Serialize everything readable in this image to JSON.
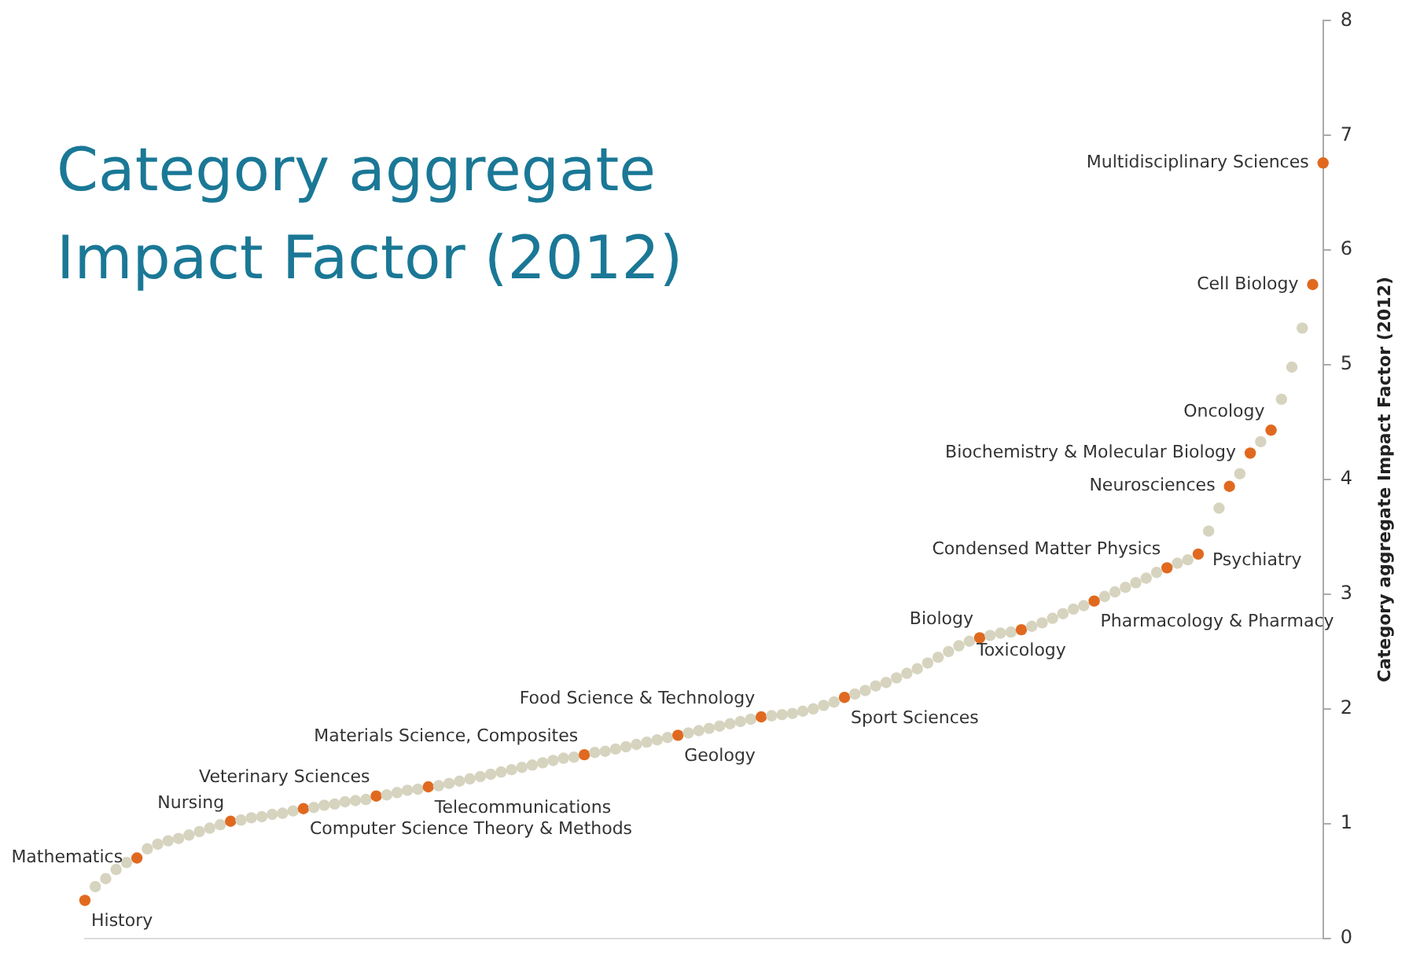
{
  "chart_data": {
    "type": "scatter",
    "title": "Category aggregate Impact Factor (2012)",
    "ylabel": "Category aggregate Impact Factor (2012)",
    "categories": [
      null,
      null,
      null,
      null,
      null,
      null,
      null,
      null,
      null,
      null,
      null,
      null,
      null,
      null,
      null,
      null,
      null,
      null,
      null,
      null,
      null,
      null,
      null,
      null,
      null,
      null,
      null,
      null,
      null,
      null,
      null,
      null,
      null,
      null,
      null,
      null,
      null,
      null,
      null,
      null,
      null,
      null,
      null,
      null,
      null,
      null,
      null,
      null,
      null,
      null,
      null,
      null,
      null,
      null,
      null,
      null,
      null,
      null,
      null,
      null,
      null,
      null,
      null,
      null,
      null,
      null,
      null,
      null,
      null,
      null,
      null,
      null,
      null,
      null,
      null,
      null,
      null,
      null,
      null,
      null,
      null,
      null,
      null,
      null,
      null,
      null,
      null,
      null,
      null,
      null,
      null,
      null,
      null,
      null,
      null,
      null,
      null,
      null,
      null,
      null,
      null,
      null,
      null,
      null,
      null,
      null,
      null,
      null,
      null,
      null,
      null,
      null,
      null,
      null,
      null,
      null,
      null,
      null,
      null,
      null
    ],
    "values": [
      0.33,
      0.45,
      0.52,
      0.6,
      0.66,
      0.7,
      0.78,
      0.82,
      0.85,
      0.87,
      0.9,
      0.93,
      0.96,
      0.99,
      1.02,
      1.03,
      1.05,
      1.06,
      1.08,
      1.09,
      1.11,
      1.13,
      1.14,
      1.16,
      1.17,
      1.19,
      1.2,
      1.21,
      1.24,
      1.25,
      1.27,
      1.29,
      1.3,
      1.32,
      1.33,
      1.35,
      1.37,
      1.39,
      1.41,
      1.43,
      1.45,
      1.47,
      1.49,
      1.51,
      1.53,
      1.55,
      1.57,
      1.58,
      1.6,
      1.62,
      1.63,
      1.65,
      1.67,
      1.69,
      1.71,
      1.73,
      1.75,
      1.77,
      1.79,
      1.81,
      1.83,
      1.85,
      1.87,
      1.89,
      1.91,
      1.93,
      1.94,
      1.95,
      1.96,
      1.98,
      2.0,
      2.03,
      2.06,
      2.1,
      2.13,
      2.16,
      2.2,
      2.23,
      2.27,
      2.31,
      2.35,
      2.4,
      2.45,
      2.5,
      2.55,
      2.59,
      2.62,
      2.64,
      2.66,
      2.67,
      2.69,
      2.72,
      2.75,
      2.79,
      2.83,
      2.87,
      2.9,
      2.94,
      2.98,
      3.02,
      3.06,
      3.1,
      3.14,
      3.19,
      3.23,
      3.27,
      3.3,
      3.35,
      3.55,
      3.75,
      3.94,
      4.05,
      4.23,
      4.33,
      4.43,
      4.7,
      4.98,
      5.32,
      5.7,
      6.76
    ],
    "colors": [
      "#e0691f",
      "#d6d3bf",
      "#d6d3bf",
      "#d6d3bf",
      "#d6d3bf",
      "#e0691f",
      "#d6d3bf",
      "#d6d3bf",
      "#d6d3bf",
      "#d6d3bf",
      "#d6d3bf",
      "#d6d3bf",
      "#d6d3bf",
      "#d6d3bf",
      "#e0691f",
      "#d6d3bf",
      "#d6d3bf",
      "#d6d3bf",
      "#d6d3bf",
      "#d6d3bf",
      "#d6d3bf",
      "#e0691f",
      "#d6d3bf",
      "#d6d3bf",
      "#d6d3bf",
      "#d6d3bf",
      "#d6d3bf",
      "#d6d3bf",
      "#e0691f",
      "#d6d3bf",
      "#d6d3bf",
      "#d6d3bf",
      "#d6d3bf",
      "#e0691f",
      "#d6d3bf",
      "#d6d3bf",
      "#d6d3bf",
      "#d6d3bf",
      "#d6d3bf",
      "#d6d3bf",
      "#d6d3bf",
      "#d6d3bf",
      "#d6d3bf",
      "#d6d3bf",
      "#d6d3bf",
      "#d6d3bf",
      "#d6d3bf",
      "#d6d3bf",
      "#e0691f",
      "#d6d3bf",
      "#d6d3bf",
      "#d6d3bf",
      "#d6d3bf",
      "#d6d3bf",
      "#d6d3bf",
      "#d6d3bf",
      "#d6d3bf",
      "#e0691f",
      "#d6d3bf",
      "#d6d3bf",
      "#d6d3bf",
      "#d6d3bf",
      "#d6d3bf",
      "#d6d3bf",
      "#d6d3bf",
      "#e0691f",
      "#d6d3bf",
      "#d6d3bf",
      "#d6d3bf",
      "#d6d3bf",
      "#d6d3bf",
      "#d6d3bf",
      "#d6d3bf",
      "#e0691f",
      "#d6d3bf",
      "#d6d3bf",
      "#d6d3bf",
      "#d6d3bf",
      "#d6d3bf",
      "#d6d3bf",
      "#d6d3bf",
      "#d6d3bf",
      "#d6d3bf",
      "#d6d3bf",
      "#d6d3bf",
      "#d6d3bf",
      "#e0691f",
      "#d6d3bf",
      "#d6d3bf",
      "#d6d3bf",
      "#e0691f",
      "#d6d3bf",
      "#d6d3bf",
      "#d6d3bf",
      "#d6d3bf",
      "#d6d3bf",
      "#d6d3bf",
      "#e0691f",
      "#d6d3bf",
      "#d6d3bf",
      "#d6d3bf",
      "#d6d3bf",
      "#d6d3bf",
      "#d6d3bf",
      "#e0691f",
      "#d6d3bf",
      "#d6d3bf",
      "#e0691f",
      "#d6d3bf",
      "#d6d3bf",
      "#e0691f",
      "#d6d3bf",
      "#e0691f",
      "#d6d3bf",
      "#e0691f",
      "#d6d3bf",
      "#d6d3bf",
      "#d6d3bf",
      "#e0691f",
      "#e0691f"
    ],
    "value_labels": [
      "History",
      null,
      null,
      null,
      null,
      "Mathematics",
      null,
      null,
      null,
      null,
      null,
      null,
      null,
      null,
      "Nursing",
      null,
      null,
      null,
      null,
      null,
      null,
      "Computer Science Theory & Methods",
      null,
      null,
      null,
      null,
      null,
      null,
      "Veterinary Sciences",
      null,
      null,
      null,
      null,
      "Telecommunications",
      null,
      null,
      null,
      null,
      null,
      null,
      null,
      null,
      null,
      null,
      null,
      null,
      null,
      null,
      "Materials Science, Composites",
      null,
      null,
      null,
      null,
      null,
      null,
      null,
      null,
      "Geology",
      null,
      null,
      null,
      null,
      null,
      null,
      null,
      "Food Science & Technology",
      null,
      null,
      null,
      null,
      null,
      null,
      null,
      "Sport Sciences",
      null,
      null,
      null,
      null,
      null,
      null,
      null,
      null,
      null,
      null,
      null,
      null,
      "Biology",
      null,
      null,
      null,
      "Toxicology",
      null,
      null,
      null,
      null,
      null,
      null,
      "Pharmacology & Pharmacy",
      null,
      null,
      null,
      null,
      null,
      null,
      "Condensed Matter Physics",
      null,
      null,
      "Psychiatry",
      null,
      null,
      "Neurosciences",
      null,
      "Biochemistry & Molecular Biology",
      null,
      "Oncology",
      null,
      null,
      null,
      "Cell Biology",
      "Multidisciplinary Sciences"
    ],
    "ylim": [
      0,
      8
    ],
    "yticks": [
      0,
      1,
      2,
      3,
      4,
      5,
      6,
      7,
      8
    ],
    "tick_labels": "y",
    "grid": false,
    "legend": false,
    "marker": "circle"
  }
}
